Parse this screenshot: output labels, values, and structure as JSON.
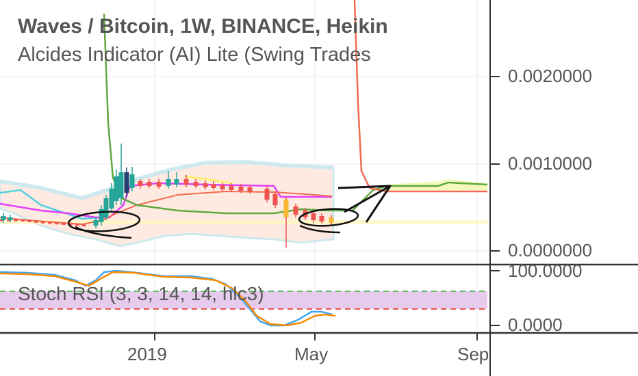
{
  "header": {
    "title": "Waves / Bitcoin, 1W, BINANCE, Heikin",
    "indicator": "Alcides Indicator (AI) Lite (Swing Trades"
  },
  "oscillator": {
    "label": "Stoch RSI (3, 3, 14, 14, hlc3)"
  },
  "colors": {
    "candle_up": "#26a69a",
    "candle_down": "#ef5350",
    "bb_fill": "#fde3d6",
    "bb_edge": "#cde9ee",
    "green_line": "#5fa83f",
    "red_line": "#f26b4f",
    "magenta_line": "#e040fb",
    "cyan_line": "#4dd0e1",
    "k_line": "#42a5f5",
    "d_line": "#fb8c00",
    "stoch_band": "#e1bee7"
  },
  "chart_data": [
    {
      "type": "candlestick",
      "title": "Waves / Bitcoin, 1W, BINANCE, Heikin",
      "ylim": [
        -0.0001,
        0.0028
      ],
      "y_ticks": [
        "0.0020000",
        "0.0010000",
        "0.0000000"
      ],
      "x_ticks": [
        "2019",
        "May",
        "Sep"
      ],
      "annotations": [
        "hand-drawn circle around low",
        "hand-drawn circle around low",
        "hand-drawn arrow pointing up-right"
      ]
    },
    {
      "type": "line",
      "title": "Stoch RSI (3, 3, 14, 14, hlc3)",
      "ylim": [
        0,
        100
      ],
      "y_ticks": [
        "100.0000",
        "0.0000"
      ],
      "bands": [
        80,
        20
      ]
    }
  ]
}
